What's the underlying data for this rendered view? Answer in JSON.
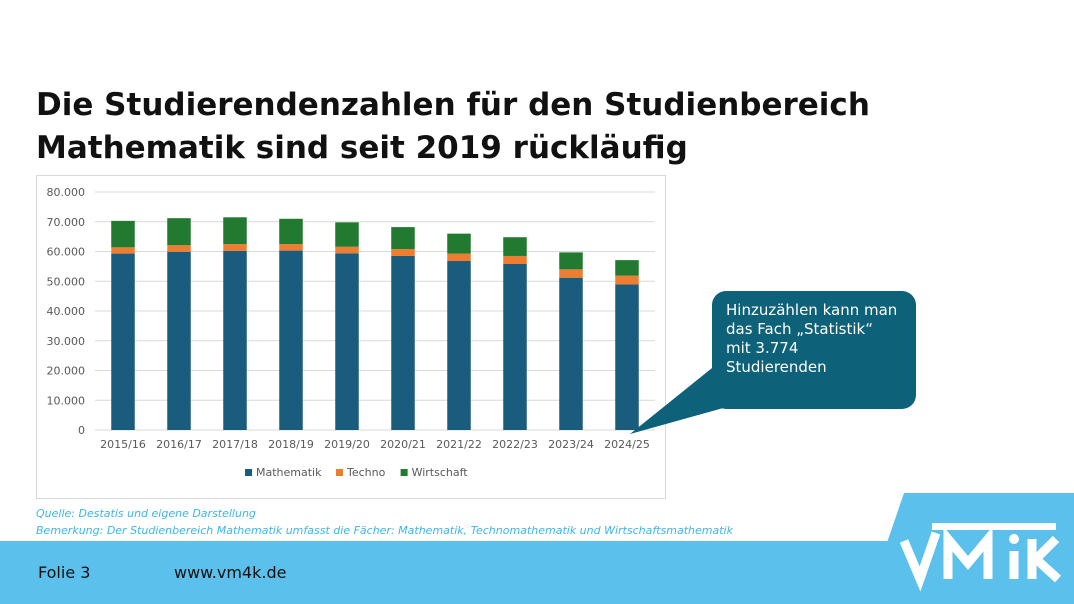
{
  "slide": {
    "title": "Die Studierendenzahlen für den Studienbereich Mathematik sind seit 2019 rückläufig",
    "callout": "Hinzuzählen kann man das Fach „Statistik“ mit 3.774 Studierenden",
    "source_note": "Quelle: Destatis und eigene Darstellung",
    "remark_note": "Bemerkung: Der Studienbereich Mathematik umfasst die Fächer: Mathematik, Technomathematik und Wirtschaftsmathematik",
    "footer_slide": "Folie 3",
    "footer_url": "www.vm4k.de",
    "logo_text": "VMK"
  },
  "colors": {
    "mathematik": "#1a5c7e",
    "techno": "#ed7d31",
    "wirtschaft": "#217a2f",
    "footer_bar": "#5bc0eb",
    "callout_bg": "#0d6178",
    "notes_text": "#3cb6e8"
  },
  "chart_data": {
    "type": "bar",
    "stacked": true,
    "categories": [
      "2015/16",
      "2016/17",
      "2017/18",
      "2018/19",
      "2019/20",
      "2020/21",
      "2021/22",
      "2022/23",
      "2023/24",
      "2024/25"
    ],
    "series": [
      {
        "name": "Mathematik",
        "values": [
          59300,
          59900,
          60200,
          60300,
          59400,
          58500,
          56800,
          55800,
          51200,
          48900
        ]
      },
      {
        "name": "Techno",
        "values": [
          2100,
          2200,
          2300,
          2200,
          2200,
          2300,
          2500,
          2700,
          2800,
          3000
        ]
      },
      {
        "name": "Wirtschaft",
        "values": [
          8900,
          9100,
          9000,
          8500,
          8200,
          7400,
          6700,
          6300,
          5700,
          5200
        ]
      }
    ],
    "y_ticks": [
      "0",
      "10.000",
      "20.000",
      "30.000",
      "40.000",
      "50.000",
      "60.000",
      "70.000",
      "80.000"
    ],
    "ylim": [
      0,
      80000
    ],
    "grid": true,
    "legend_position": "bottom"
  }
}
